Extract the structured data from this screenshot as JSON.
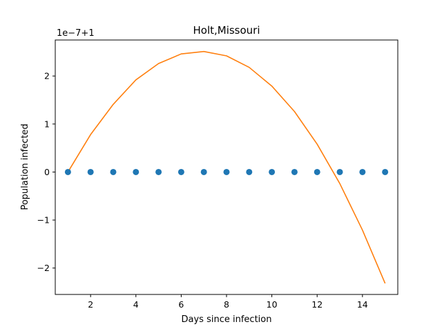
{
  "chart_data": {
    "type": "scatter",
    "title": "Holt,Missouri",
    "xlabel": "Days since infection",
    "ylabel": "Population infected",
    "offset_text": "1e−7+1",
    "xlim": [
      0.44,
      15.56
    ],
    "ylim": [
      -2.55,
      2.75
    ],
    "ylim_units": "1e-7 offset from 1",
    "x_ticks": [
      2,
      4,
      6,
      8,
      10,
      12,
      14
    ],
    "x_tick_labels": [
      "2",
      "4",
      "6",
      "8",
      "10",
      "12",
      "14"
    ],
    "y_ticks": [
      -2,
      -1,
      0,
      1,
      2
    ],
    "y_tick_labels": [
      "−2",
      "−1",
      "0",
      "1",
      "2"
    ],
    "grid": false,
    "series": [
      {
        "kind": "scatter",
        "color": "#1f77b4",
        "x": [
          1,
          2,
          3,
          4,
          5,
          6,
          7,
          8,
          9,
          10,
          11,
          12,
          13,
          14,
          15
        ],
        "y": [
          0,
          0,
          0,
          0,
          0,
          0,
          0,
          0,
          0,
          0,
          0,
          0,
          0,
          0,
          0
        ]
      },
      {
        "kind": "line",
        "color": "#ff7f0e",
        "x": [
          1,
          2,
          3,
          4,
          5,
          6,
          7,
          8,
          9,
          10,
          11,
          12,
          13,
          14,
          15
        ],
        "y": [
          0.0,
          0.78,
          1.41,
          1.92,
          2.26,
          2.46,
          2.51,
          2.42,
          2.18,
          1.79,
          1.26,
          0.58,
          -0.24,
          -1.21,
          -2.32
        ]
      }
    ]
  }
}
